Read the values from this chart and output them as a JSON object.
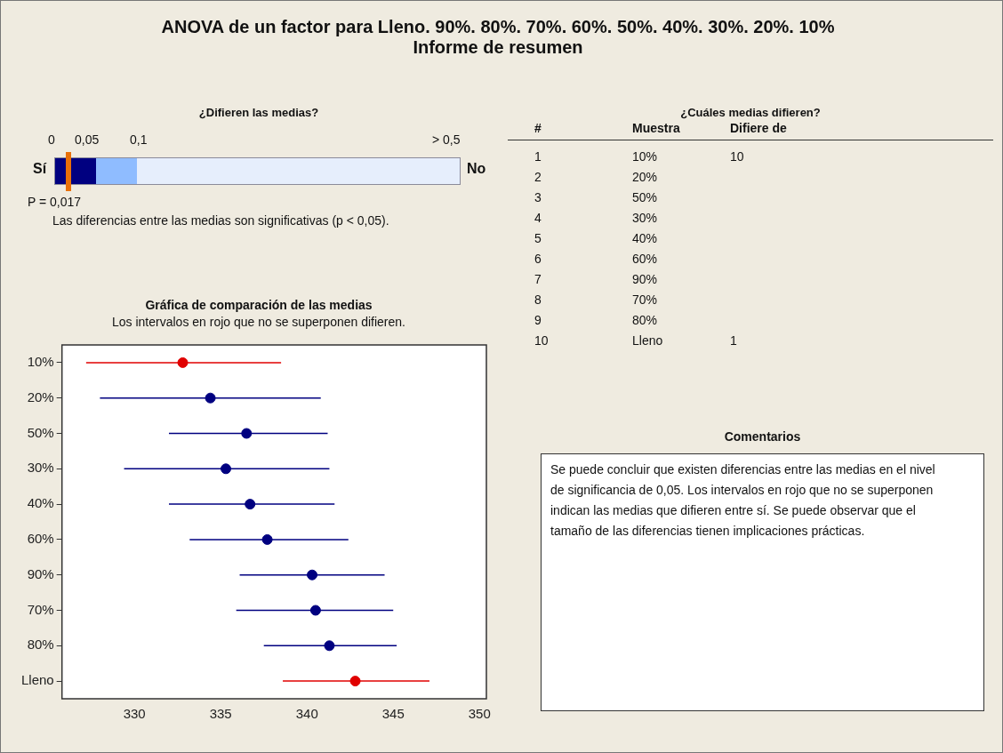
{
  "chart_data": [
    {
      "type": "other",
      "title": "ANOVA de un factor para Lleno. 90%. 80%. 70%. 60%. 50%. 40%. 30%. 20%. 10%",
      "subtitle": "Informe de resumen"
    },
    {
      "type": "other",
      "title": "¿Difieren las medias?",
      "annotations": [
        "0",
        "0,05",
        "0,1",
        "> 0,5",
        "Sí",
        "No",
        "P = 0,017",
        "Las diferencias entre las medias son significativas (p < 0,05)."
      ]
    },
    {
      "type": "other",
      "title": "¿Cuáles medias difieren?",
      "annotations": [
        "#\tMuestra\tDifiere de",
        "1\t10%\t10",
        "2\t20%",
        "3\t50%",
        "4\t30%",
        "5\t40%",
        "6\t60%",
        "7\t90%",
        "8\t70%",
        "9\t80%",
        "10\tLleno\t1"
      ]
    },
    {
      "type": "scatter",
      "title": "Gráfica de comparación de las medias",
      "subtitle": "Los intervalos en rojo que no se superponen difieren.",
      "orientation": "horizontal",
      "marker": "circle",
      "categories": [
        "10%",
        "20%",
        "50%",
        "30%",
        "40%",
        "60%",
        "90%",
        "70%",
        "80%",
        "Lleno"
      ],
      "values": [
        332.8,
        334.4,
        336.5,
        335.3,
        336.7,
        337.7,
        340.3,
        340.5,
        341.3,
        342.8
      ],
      "errors": [
        [
          327.2,
          338.5
        ],
        [
          328.0,
          340.8
        ],
        [
          332.0,
          341.2
        ],
        [
          329.4,
          341.3
        ],
        [
          332.0,
          341.6
        ],
        [
          333.2,
          342.4
        ],
        [
          336.1,
          344.5
        ],
        [
          335.9,
          345.0
        ],
        [
          337.5,
          345.2
        ],
        [
          338.6,
          347.1
        ]
      ],
      "colors": [
        "#e00000",
        "#000080",
        "#000080",
        "#000080",
        "#000080",
        "#000080",
        "#000080",
        "#000080",
        "#000080",
        "#e00000"
      ],
      "xlim": [
        325.8,
        350.4
      ],
      "xticks": [
        330,
        335,
        340,
        345,
        350
      ]
    },
    {
      "type": "other",
      "title": "Comentarios",
      "annotations": [
        "Se puede concluir que existen diferencias entre las medias en el nivel de significancia de 0,05. Los intervalos en rojo que no se superponen indican las medias que difieren entre sí. Se puede observar que el tamaño de las diferencias tienen implicaciones prácticas."
      ]
    }
  ]
}
